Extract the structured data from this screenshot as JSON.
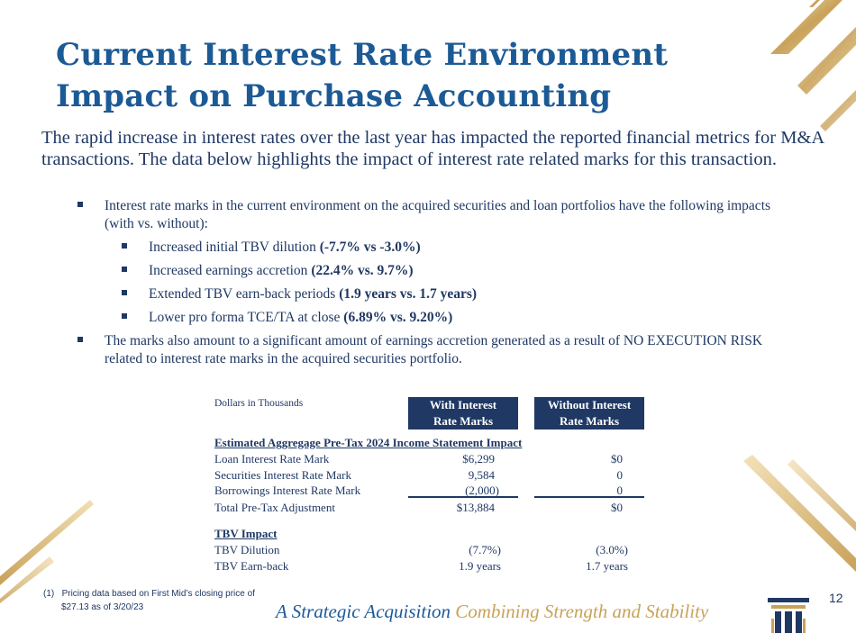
{
  "title": {
    "line1": "Current Interest Rate Environment",
    "line2": "Impact on Purchase Accounting"
  },
  "intro": "The rapid increase in interest rates over the last year has impacted the reported financial metrics for M&A transactions.  The data below highlights the impact of interest rate related marks for this transaction.",
  "bullets": {
    "main1": "Interest rate marks in the current environment on the acquired securities and loan portfolios have the following impacts (with vs. without):",
    "sub": [
      {
        "text": "Increased initial TBV dilution ",
        "bold": "(-7.7% vs -3.0%)"
      },
      {
        "text": "Increased earnings accretion ",
        "bold": "(22.4% vs. 9.7%)"
      },
      {
        "text": "Extended TBV earn-back periods ",
        "bold": "(1.9 years vs. 1.7 years)"
      },
      {
        "text": "Lower pro forma TCE/TA at close ",
        "bold": "(6.89% vs. 9.20%)"
      }
    ],
    "main2": "The marks also amount to a significant amount of earnings accretion generated as a result of NO EXECUTION RISK related to interest rate marks in the acquired securities portfolio."
  },
  "table": {
    "units": "Dollars in Thousands",
    "col1_l1": "With Interest",
    "col1_l2": "Rate Marks",
    "col2_l1": "Without Interest",
    "col2_l2": "Rate Marks",
    "section1": "Estimated Aggregage Pre-Tax 2024 Income Statement Impact",
    "rows": [
      {
        "label": "Loan Interest Rate Mark",
        "with": "$6,299",
        "without": "$0"
      },
      {
        "label": "Securities Interest Rate Mark",
        "with": "9,584",
        "without": "0"
      },
      {
        "label": "Borrowings Interest Rate Mark",
        "with": "(2,000)",
        "without": "0"
      },
      {
        "label": "Total Pre-Tax Adjustment",
        "with": "$13,884",
        "without": "$0"
      }
    ],
    "section2": "TBV Impact",
    "tbv_rows": [
      {
        "label": "TBV Dilution",
        "with": "(7.7%)",
        "without": "(3.0%)"
      },
      {
        "label": "TBV Earn-back",
        "with": "1.9 years",
        "without": "1.7 years"
      }
    ]
  },
  "footnote": {
    "marker": "(1)",
    "line1": "Pricing data based on First Mid’s closing price of",
    "line2": "$27.13 as of 3/20/23"
  },
  "tagline": {
    "part1": "A Strategic Acquisition",
    "part2": "Combining Strength and Stability"
  },
  "page_number": "12",
  "colors": {
    "navy": "#1f3864",
    "title_blue": "#1c5a96",
    "gold": "#c9a25a"
  }
}
